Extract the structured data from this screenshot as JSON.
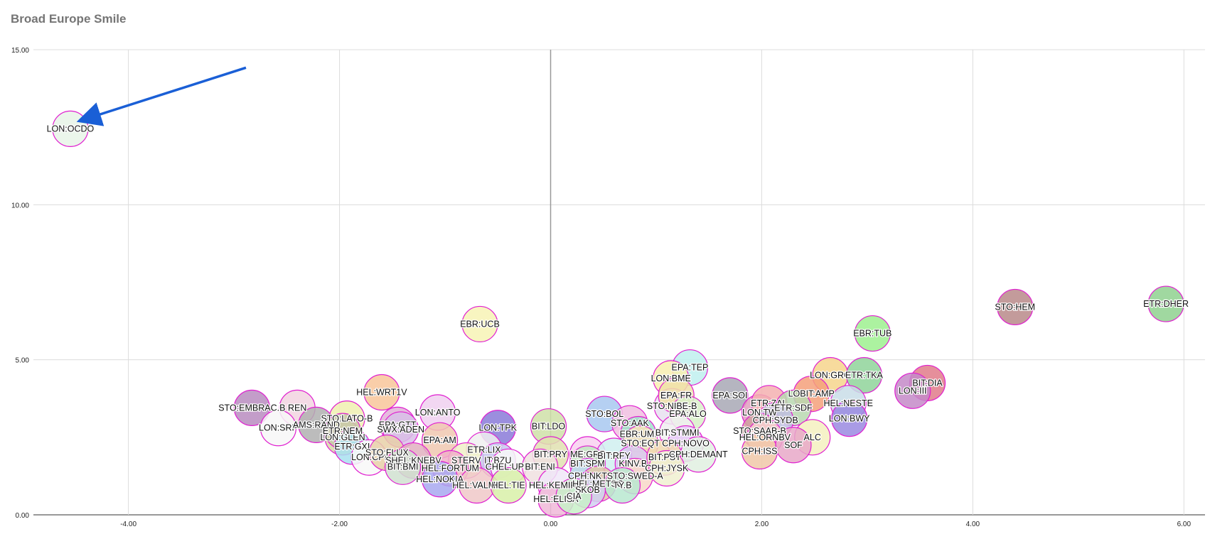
{
  "chart_data": {
    "type": "scatter",
    "title": "Broad Europe Smile",
    "xlabel": "",
    "ylabel": "",
    "xlim": [
      -4.9,
      6.2
    ],
    "ylim": [
      0,
      15
    ],
    "x_ticks": [
      "-4.00",
      "-2.00",
      "0.00",
      "2.00",
      "4.00",
      "6.00"
    ],
    "y_ticks": [
      "0.00",
      "5.00",
      "10.00",
      "15.00"
    ],
    "grid": true,
    "legend": "none",
    "bubble_style": "semi-transparent pastel fill with magenta outline",
    "annotation": {
      "type": "arrow",
      "points_to": "LON:OCDO",
      "color": "#1a5fd6"
    },
    "points": [
      {
        "label": "LON:OCDO",
        "x": -4.55,
        "y": 12.45,
        "fill": "#e8f4e8"
      },
      {
        "label": "ETR:DHER",
        "x": 5.83,
        "y": 6.8,
        "fill": "#8fd18f"
      },
      {
        "label": "STO:HEM",
        "x": 4.4,
        "y": 6.7,
        "fill": "#b98a8a"
      },
      {
        "label": "EBR:UCB",
        "x": -0.67,
        "y": 6.15,
        "fill": "#f7f3b5"
      },
      {
        "label": "EBR:TUB",
        "x": 3.05,
        "y": 5.85,
        "fill": "#9ef08f"
      },
      {
        "label": "EPA:TEP",
        "x": 1.32,
        "y": 4.75,
        "fill": "#bff0ee"
      },
      {
        "label": "LON:GRG",
        "x": 2.65,
        "y": 4.5,
        "fill": "#f6d58c"
      },
      {
        "label": "ETR:TKA",
        "x": 2.97,
        "y": 4.5,
        "fill": "#8fd49a"
      },
      {
        "label": "BIT:DIA",
        "x": 3.57,
        "y": 4.25,
        "fill": "#e07b8a"
      },
      {
        "label": "LON:III",
        "x": 3.43,
        "y": 4.0,
        "fill": "#c48ac8"
      },
      {
        "label": "LON:BME",
        "x": 1.14,
        "y": 4.4,
        "fill": "#f8efb0"
      },
      {
        "label": "HEL:WRT1V",
        "x": -1.6,
        "y": 3.95,
        "fill": "#f8c69a"
      },
      {
        "label": "HEL:NESTE",
        "x": 2.82,
        "y": 3.6,
        "fill": "#c9dde8"
      },
      {
        "label": "LON:BWY",
        "x": 2.83,
        "y": 3.1,
        "fill": "#9a8ae0"
      },
      {
        "label": "LOBIT:AMP",
        "x": 2.47,
        "y": 3.9,
        "fill": "#f5a07a"
      },
      {
        "label": "EPA:SOI",
        "x": 1.7,
        "y": 3.85,
        "fill": "#a8a8b5"
      },
      {
        "label": "STO:EMBRAC.B",
        "x": -2.83,
        "y": 3.45,
        "fill": "#b98cc0"
      },
      {
        "label": "REN",
        "x": -2.4,
        "y": 3.45,
        "fill": "#f2d3e0"
      },
      {
        "label": "LON:SRP",
        "x": -2.58,
        "y": 2.8,
        "fill": "#f7f7f7"
      },
      {
        "label": "LON:ANTO",
        "x": -1.07,
        "y": 3.3,
        "fill": "#f0d0f0"
      },
      {
        "label": "STO:LATO-B",
        "x": -1.93,
        "y": 3.1,
        "fill": "#f0f0b0"
      },
      {
        "label": "AMS:RAND",
        "x": -2.22,
        "y": 2.9,
        "fill": "#b0b0b0"
      },
      {
        "label": "EPA:GTT",
        "x": -1.45,
        "y": 2.9,
        "fill": "#e0b0d8"
      },
      {
        "label": "SWX:ADEN",
        "x": -1.42,
        "y": 2.75,
        "fill": "#d8c0e8"
      },
      {
        "label": "LON:TPK",
        "x": -0.5,
        "y": 2.8,
        "fill": "#8a7ad8"
      },
      {
        "label": "BIT:LDO",
        "x": -0.02,
        "y": 2.85,
        "fill": "#cfe0a8"
      },
      {
        "label": "STO:BOL",
        "x": 0.51,
        "y": 3.25,
        "fill": "#a8c8f0"
      },
      {
        "label": "STO:AAK",
        "x": 0.75,
        "y": 2.95,
        "fill": "#f0c0e0"
      },
      {
        "label": "STO:NIBE-B",
        "x": 1.15,
        "y": 3.5,
        "fill": "#e8e0f0"
      },
      {
        "label": "EPA:FR",
        "x": 1.19,
        "y": 3.85,
        "fill": "#f0e0a8"
      },
      {
        "label": "EPA:ALO",
        "x": 1.3,
        "y": 3.25,
        "fill": "#d8f0c8"
      },
      {
        "label": "LON:TW",
        "x": 1.98,
        "y": 3.3,
        "fill": "#e0a0c0"
      },
      {
        "label": "ETR:ZAL",
        "x": 2.07,
        "y": 3.6,
        "fill": "#f4b0b0"
      },
      {
        "label": "ETR:SDF",
        "x": 2.3,
        "y": 3.45,
        "fill": "#b8d8b0"
      },
      {
        "label": "CPH:SYDB",
        "x": 2.13,
        "y": 3.05,
        "fill": "#c0c0e0"
      },
      {
        "label": "EBR:UMI",
        "x": 0.83,
        "y": 2.6,
        "fill": "#a0e0c8"
      },
      {
        "label": "BIT:STMMI",
        "x": 1.2,
        "y": 2.65,
        "fill": "#f0f0f0"
      },
      {
        "label": "STO:EQT",
        "x": 0.85,
        "y": 2.3,
        "fill": "#f8e0b8"
      },
      {
        "label": "CPH:NOVO",
        "x": 1.28,
        "y": 2.3,
        "fill": "#e8c8f8"
      },
      {
        "label": "STO:SAAB-B",
        "x": 1.98,
        "y": 2.7,
        "fill": "#d0a0a0"
      },
      {
        "label": "HEL:ORNBV",
        "x": 2.03,
        "y": 2.5,
        "fill": "#f8d0d0"
      },
      {
        "label": "ALC",
        "x": 2.48,
        "y": 2.5,
        "fill": "#f4f0c0"
      },
      {
        "label": "CPH:ISS",
        "x": 1.98,
        "y": 2.05,
        "fill": "#f0c8a8"
      },
      {
        "label": "SOF",
        "x": 2.3,
        "y": 2.25,
        "fill": "#e8a8c8"
      },
      {
        "label": "LON:GLEN",
        "x": -1.97,
        "y": 2.5,
        "fill": "#d8d8a8"
      },
      {
        "label": "ETR:NEM",
        "x": -1.97,
        "y": 2.7,
        "fill": "#c8c8a8"
      },
      {
        "label": "ETR:GXI",
        "x": -1.88,
        "y": 2.2,
        "fill": "#a8e0f0"
      },
      {
        "label": "EPA:AM",
        "x": -1.05,
        "y": 2.4,
        "fill": "#f0c8b0"
      },
      {
        "label": "ETR:LIX",
        "x": -0.63,
        "y": 2.1,
        "fill": "#f0f0f0"
      },
      {
        "label": "LON:CPI",
        "x": -1.72,
        "y": 1.85,
        "fill": "#f8f8f8"
      },
      {
        "label": "STO:FLUX",
        "x": -1.55,
        "y": 2.0,
        "fill": "#e8d0a8"
      },
      {
        "label": "SHEL:KNEBV",
        "x": -1.3,
        "y": 1.75,
        "fill": "#e0b0c0"
      },
      {
        "label": "STERV",
        "x": -0.8,
        "y": 1.75,
        "fill": "#f0f0c8"
      },
      {
        "label": "IT:BZU",
        "x": -0.5,
        "y": 1.75,
        "fill": "#c8c8f0"
      },
      {
        "label": "BIT:BMI",
        "x": -1.4,
        "y": 1.55,
        "fill": "#d0e0d0"
      },
      {
        "label": "HEL:FORTUM",
        "x": -0.95,
        "y": 1.5,
        "fill": "#f0b0c8"
      },
      {
        "label": "CHEL:UPM",
        "x": -0.4,
        "y": 1.55,
        "fill": "#f8f8f8"
      },
      {
        "label": "BIT:PRY",
        "x": 0.0,
        "y": 1.95,
        "fill": "#e0e0b0"
      },
      {
        "label": "ME:GRF",
        "x": 0.35,
        "y": 1.95,
        "fill": "#f8d0f0"
      },
      {
        "label": "BIT:RFY",
        "x": 0.6,
        "y": 1.9,
        "fill": "#d0f0f0"
      },
      {
        "label": "BIT:ENI",
        "x": -0.1,
        "y": 1.55,
        "fill": "#f0e0e0"
      },
      {
        "label": "BIT:SPM",
        "x": 0.35,
        "y": 1.65,
        "fill": "#c0e8c0"
      },
      {
        "label": "KINV.B",
        "x": 0.78,
        "y": 1.65,
        "fill": "#d8c8f0"
      },
      {
        "label": "BIT:PST",
        "x": 1.08,
        "y": 1.85,
        "fill": "#f0d8b0"
      },
      {
        "label": "CPH:DEMANT",
        "x": 1.4,
        "y": 1.95,
        "fill": "#e0f0e0"
      },
      {
        "label": "HEL:NOKIA",
        "x": -1.05,
        "y": 1.15,
        "fill": "#a8a8f0"
      },
      {
        "label": "HEL:VALMT",
        "x": -0.7,
        "y": 0.95,
        "fill": "#f0c8c8"
      },
      {
        "label": "HEL:TIE",
        "x": -0.4,
        "y": 0.95,
        "fill": "#d8f0a8"
      },
      {
        "label": "HEL:KEMIRA",
        "x": 0.05,
        "y": 0.95,
        "fill": "#f0e8f8"
      },
      {
        "label": "CPH:NKT",
        "x": 0.35,
        "y": 1.25,
        "fill": "#c0d8f0"
      },
      {
        "label": "STO:SWED-A",
        "x": 0.8,
        "y": 1.25,
        "fill": "#f8d8c8"
      },
      {
        "label": "HEL:METSO",
        "x": 0.45,
        "y": 1.0,
        "fill": "#e0c8a8"
      },
      {
        "label": "TY.B",
        "x": 0.68,
        "y": 0.95,
        "fill": "#b8e8d0"
      },
      {
        "label": "HEL:ELISA",
        "x": 0.05,
        "y": 0.5,
        "fill": "#f0b8d8"
      },
      {
        "label": "SKOB",
        "x": 0.35,
        "y": 0.8,
        "fill": "#d0d0f0"
      },
      {
        "label": "CIA",
        "x": 0.22,
        "y": 0.6,
        "fill": "#c8f0c8"
      },
      {
        "label": "CPH:JYSK",
        "x": 1.1,
        "y": 1.5,
        "fill": "#f0f0d0"
      }
    ]
  }
}
